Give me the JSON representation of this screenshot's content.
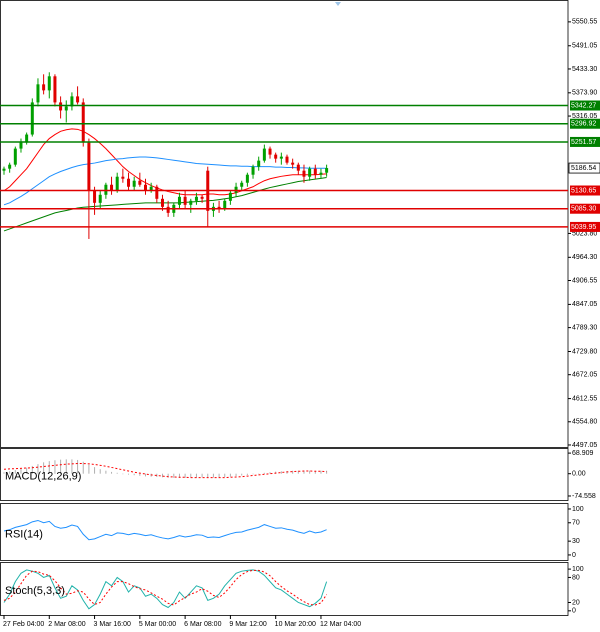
{
  "chart_data": [
    {
      "type": "candlestick",
      "categories": [
        "27 Feb 04:00",
        null,
        null,
        null,
        null,
        null,
        null,
        null,
        "2 Mar 08:00",
        null,
        null,
        null,
        null,
        null,
        null,
        null,
        "3 Mar 16:00",
        null,
        null,
        null,
        null,
        null,
        null,
        null,
        "5 Mar 00:00",
        null,
        null,
        null,
        null,
        null,
        null,
        null,
        "6 Mar 08:00",
        null,
        null,
        null,
        null,
        null,
        null,
        null,
        "9 Mar 12:00",
        null,
        null,
        null,
        null,
        null,
        null,
        null,
        "10 Mar 20:00",
        null,
        null,
        null,
        null,
        null,
        null,
        null,
        "12 Mar 04:00",
        null
      ],
      "open": [
        5180,
        5185,
        5195,
        5235,
        5250,
        5270,
        5350,
        5395,
        5380,
        5415,
        5350,
        5330,
        5340,
        5365,
        5350,
        5250,
        5130,
        5100,
        5120,
        5145,
        5130,
        5165,
        5160,
        5140,
        5155,
        5145,
        5130,
        5140,
        5110,
        5090,
        5075,
        5095,
        5115,
        5095,
        5105,
        5115,
        5180,
        5080,
        5090,
        5085,
        5105,
        5125,
        5140,
        5150,
        5170,
        5190,
        5205,
        5235,
        5220,
        5210,
        5215,
        5200,
        5195,
        5180,
        5165,
        5185,
        5170,
        5175
      ],
      "high": [
        5190,
        5200,
        5240,
        5260,
        5275,
        5360,
        5410,
        5420,
        5425,
        5420,
        5365,
        5355,
        5375,
        5390,
        5360,
        5260,
        5140,
        5130,
        5150,
        5165,
        5175,
        5185,
        5175,
        5165,
        5175,
        5160,
        5150,
        5145,
        5120,
        5105,
        5100,
        5125,
        5130,
        5110,
        5125,
        5120,
        5190,
        5100,
        5105,
        5110,
        5130,
        5150,
        5155,
        5175,
        5195,
        5215,
        5245,
        5240,
        5225,
        5225,
        5220,
        5210,
        5200,
        5195,
        5190,
        5195,
        5185,
        5195
      ],
      "low": [
        5170,
        5175,
        5190,
        5225,
        5245,
        5265,
        5340,
        5370,
        5360,
        5340,
        5310,
        5300,
        5330,
        5345,
        5240,
        5010,
        5070,
        5085,
        5110,
        5120,
        5125,
        5150,
        5130,
        5130,
        5140,
        5120,
        5125,
        5100,
        5080,
        5065,
        5065,
        5085,
        5085,
        5075,
        5095,
        5100,
        5040,
        5065,
        5075,
        5080,
        5095,
        5115,
        5130,
        5140,
        5160,
        5180,
        5200,
        5210,
        5200,
        5195,
        5195,
        5185,
        5170,
        5150,
        5155,
        5160,
        5160,
        5165
      ],
      "close": [
        5185,
        5195,
        5235,
        5250,
        5270,
        5350,
        5395,
        5380,
        5415,
        5350,
        5330,
        5340,
        5365,
        5350,
        5250,
        5130,
        5100,
        5120,
        5145,
        5130,
        5165,
        5160,
        5140,
        5155,
        5145,
        5130,
        5140,
        5110,
        5090,
        5075,
        5095,
        5115,
        5095,
        5105,
        5115,
        5110,
        5080,
        5090,
        5085,
        5105,
        5125,
        5140,
        5150,
        5170,
        5190,
        5205,
        5235,
        5220,
        5210,
        5215,
        5200,
        5195,
        5180,
        5165,
        5185,
        5170,
        5175,
        5186.54
      ],
      "up_color": "#00a000",
      "down_color": "#e00000",
      "series": [
        {
          "color": "#ff0000",
          "values": [
            5130,
            5140,
            5155,
            5170,
            5185,
            5205,
            5225,
            5245,
            5260,
            5270,
            5278,
            5282,
            5284,
            5283,
            5278,
            5270,
            5260,
            5248,
            5235,
            5220,
            5205,
            5190,
            5178,
            5168,
            5158,
            5150,
            5143,
            5137,
            5132,
            5128,
            5125,
            5122,
            5120,
            5120,
            5120,
            5120,
            5122,
            5122,
            5120,
            5120,
            5122,
            5125,
            5130,
            5135,
            5140,
            5148,
            5155,
            5160,
            5163,
            5166,
            5168,
            5170,
            5170,
            5170,
            5170,
            5170,
            5171,
            5172
          ]
        },
        {
          "color": "#1e90ff",
          "values": [
            5095,
            5100,
            5108,
            5116,
            5125,
            5135,
            5145,
            5155,
            5165,
            5172,
            5178,
            5183,
            5188,
            5192,
            5195,
            5197,
            5199,
            5202,
            5205,
            5207,
            5209,
            5210,
            5212,
            5213,
            5214,
            5214,
            5213,
            5212,
            5210,
            5208,
            5206,
            5204,
            5202,
            5200,
            5198,
            5197,
            5196,
            5195,
            5194,
            5193,
            5192,
            5192,
            5191,
            5191,
            5190,
            5190,
            5190,
            5190,
            5189,
            5189,
            5188,
            5188,
            5187,
            5187,
            5186,
            5186,
            5186,
            5186
          ]
        },
        {
          "color": "#008000",
          "values": [
            5030,
            5035,
            5040,
            5045,
            5050,
            5055,
            5060,
            5065,
            5070,
            5075,
            5078,
            5081,
            5084,
            5087,
            5089,
            5090,
            5091,
            5092,
            5093,
            5094,
            5095,
            5096,
            5097,
            5098,
            5099,
            5100,
            5100,
            5100,
            5100,
            5100,
            5100,
            5100,
            5101,
            5102,
            5103,
            5104,
            5105,
            5106,
            5108,
            5110,
            5112,
            5115,
            5118,
            5122,
            5126,
            5130,
            5134,
            5138,
            5141,
            5144,
            5147,
            5150,
            5153,
            5155,
            5157,
            5159,
            5161,
            5163
          ]
        }
      ],
      "levels": [
        {
          "value": 5342.27,
          "color": "#008000"
        },
        {
          "value": 5296.92,
          "color": "#008000"
        },
        {
          "value": 5251.57,
          "color": "#008000"
        },
        {
          "value": 5130.65,
          "color": "#e00000"
        },
        {
          "value": 5085.3,
          "label": "5085.30",
          "color": "#e00000"
        },
        {
          "value": 5039.95,
          "color": "#e00000"
        }
      ],
      "ylim": [
        4492,
        5605
      ],
      "yticks": [
        5550.55,
        5491.05,
        {
          "value": 5433.3,
          "label": "5433.30"
        },
        {
          "value": 5373.9,
          "label": "5373.90"
        },
        5316.05,
        {
          "value": 5023.8,
          "label": "5023.80"
        },
        {
          "value": 4964.3,
          "label": "4964.30"
        },
        4906.55,
        4847.05,
        {
          "value": 4789.3,
          "label": "4789.30"
        },
        {
          "value": 4729.8,
          "label": "4729.80"
        },
        4672.05,
        4612.55,
        {
          "value": 4554.8,
          "label": "4554.80"
        },
        4497.05
      ]
    },
    {
      "type": "bar",
      "title": "MACD(12,26,9)",
      "color": "#b0b0b0",
      "values": [
        5,
        8,
        12,
        16,
        20,
        26,
        32,
        38,
        42,
        45,
        47,
        48,
        48,
        46,
        40,
        30,
        22,
        15,
        10,
        6,
        3,
        0,
        -3,
        -5,
        -7,
        -9,
        -10,
        -11,
        -12,
        -13,
        -14,
        -14,
        -14,
        -13,
        -13,
        -12,
        -13,
        -13,
        -12,
        -11,
        -10,
        -8,
        -6,
        -4,
        -2,
        0,
        3,
        5,
        7,
        8,
        9,
        10,
        10,
        10,
        10,
        10,
        10,
        10
      ],
      "series": [
        {
          "color": "#ff0000",
          "dashed": true,
          "values": [
            15,
            16,
            17,
            18,
            19,
            20,
            22,
            24,
            26,
            28,
            30,
            32,
            33,
            34,
            34,
            33,
            31,
            28,
            25,
            21,
            17,
            13,
            9,
            5,
            2,
            -1,
            -4,
            -6,
            -8,
            -10,
            -11,
            -12,
            -12,
            -13,
            -13,
            -13,
            -13,
            -13,
            -13,
            -13,
            -12,
            -11,
            -10,
            -8,
            -6,
            -4,
            -2,
            0,
            2,
            4,
            6,
            7,
            8,
            9,
            9,
            8,
            8,
            7
          ]
        }
      ],
      "ylim": [
        -88,
        86
      ],
      "yticks": [
        68.909,
        {
          "value": 0,
          "label": "0.00"
        },
        -74.558
      ]
    },
    {
      "type": "line",
      "title": "RSI(14)",
      "series": [
        {
          "color": "#1e90ff",
          "values": [
            52,
            55,
            60,
            63,
            66,
            72,
            75,
            70,
            73,
            62,
            58,
            60,
            65,
            62,
            45,
            33,
            35,
            40,
            45,
            42,
            48,
            47,
            44,
            47,
            45,
            42,
            44,
            40,
            37,
            35,
            38,
            42,
            39,
            41,
            44,
            43,
            38,
            39,
            38,
            42,
            46,
            49,
            50,
            54,
            57,
            60,
            66,
            62,
            58,
            59,
            56,
            54,
            50,
            47,
            52,
            48,
            50,
            55
          ]
        }
      ],
      "ylim": [
        -11,
        113
      ],
      "yticks": [
        100,
        70,
        30,
        0
      ]
    },
    {
      "type": "line",
      "title": "Stoch(5,3,3)",
      "series": [
        {
          "color": "#20b2aa",
          "values": [
            20,
            40,
            70,
            90,
            98,
            95,
            90,
            80,
            85,
            55,
            30,
            35,
            60,
            50,
            25,
            5,
            15,
            40,
            70,
            60,
            80,
            70,
            45,
            60,
            55,
            35,
            40,
            30,
            15,
            8,
            20,
            45,
            30,
            45,
            60,
            55,
            25,
            30,
            40,
            60,
            75,
            90,
            95,
            97,
            98,
            95,
            85,
            70,
            55,
            50,
            40,
            30,
            20,
            15,
            10,
            18,
            30,
            70
          ]
        },
        {
          "color": "#ff0000",
          "dashed": true,
          "values": [
            25,
            30,
            45,
            65,
            85,
            95,
            94,
            88,
            85,
            72,
            55,
            40,
            42,
            48,
            45,
            28,
            15,
            20,
            40,
            57,
            70,
            70,
            65,
            58,
            53,
            50,
            43,
            35,
            28,
            18,
            14,
            24,
            32,
            40,
            45,
            53,
            47,
            37,
            32,
            43,
            58,
            75,
            87,
            94,
            97,
            97,
            93,
            84,
            70,
            58,
            48,
            40,
            30,
            22,
            15,
            14,
            19,
            39
          ]
        }
      ],
      "ylim": [
        -10,
        117
      ],
      "yticks": [
        100,
        80,
        20,
        0
      ]
    }
  ]
}
